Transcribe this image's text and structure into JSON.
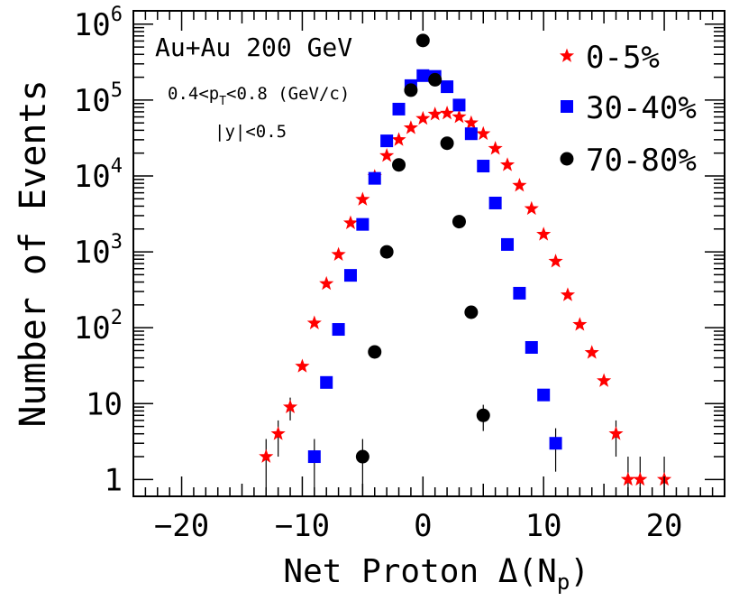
{
  "chart_data": {
    "type": "scatter",
    "xlabel_main": "Net Proton ",
    "xlabel_delta": "Δ",
    "xlabel_paren_open": "(N",
    "xlabel_sub": "p",
    "xlabel_paren_close": ")",
    "ylabel": "Number of Events",
    "xlim": [
      -24,
      25
    ],
    "ylim": [
      0.6,
      1500000
    ],
    "log_y": true,
    "grid": false,
    "legend_position": "top-right",
    "x_ticks": [
      {
        "value": -20,
        "label": "−20"
      },
      {
        "value": -10,
        "label": "−10"
      },
      {
        "value": 0,
        "label": "0"
      },
      {
        "value": 10,
        "label": "10"
      },
      {
        "value": 20,
        "label": "20"
      }
    ],
    "y_ticks": [
      {
        "value": 1,
        "label": "1"
      },
      {
        "value": 10,
        "label": "10"
      },
      {
        "value": 100,
        "base": "10",
        "exp": "2"
      },
      {
        "value": 1000,
        "base": "10",
        "exp": "3"
      },
      {
        "value": 10000,
        "base": "10",
        "exp": "4"
      },
      {
        "value": 100000,
        "base": "10",
        "exp": "5"
      },
      {
        "value": 1000000,
        "base": "10",
        "exp": "6"
      }
    ],
    "annotations": {
      "system": "Au+Au 200 GeV",
      "pt_prefix": "0.4<p",
      "pt_sub": "T",
      "pt_suffix": "<0.8 (GeV/c)",
      "rapidity": "|y|<0.5"
    },
    "series": [
      {
        "name": "0-5%",
        "marker": "star",
        "color": "#ff0000",
        "x": [
          -13,
          -12,
          -11,
          -10,
          -9,
          -8,
          -7,
          -6,
          -5,
          -4,
          -3,
          -2,
          -1,
          0,
          1,
          2,
          3,
          4,
          5,
          6,
          7,
          8,
          9,
          10,
          11,
          12,
          13,
          14,
          15,
          16,
          17,
          18,
          20
        ],
        "y": [
          2,
          4,
          9,
          31,
          115,
          380,
          920,
          2400,
          4900,
          9800,
          18500,
          30000,
          43000,
          57000,
          65000,
          67000,
          60000,
          50000,
          36000,
          23000,
          14000,
          7500,
          3700,
          1700,
          750,
          270,
          110,
          47,
          20,
          4,
          1,
          1,
          1
        ]
      },
      {
        "name": "30-40%",
        "marker": "square",
        "color": "#0000ff",
        "x": [
          -9,
          -8,
          -7,
          -6,
          -5,
          -4,
          -3,
          -2,
          -1,
          0,
          1,
          2,
          3,
          4,
          5,
          6,
          7,
          8,
          9,
          10,
          11
        ],
        "y": [
          2,
          19,
          95,
          490,
          2300,
          9300,
          29000,
          76000,
          155000,
          210000,
          205000,
          150000,
          86000,
          36000,
          13500,
          4400,
          1250,
          285,
          55,
          13,
          3
        ]
      },
      {
        "name": "70-80%",
        "marker": "circle",
        "color": "#000000",
        "x": [
          -5,
          -4,
          -3,
          -2,
          -1,
          0,
          1,
          2,
          3,
          4,
          5
        ],
        "y": [
          2,
          48,
          1000,
          14000,
          135000,
          610000,
          185000,
          27000,
          2500,
          160,
          7
        ]
      }
    ]
  }
}
